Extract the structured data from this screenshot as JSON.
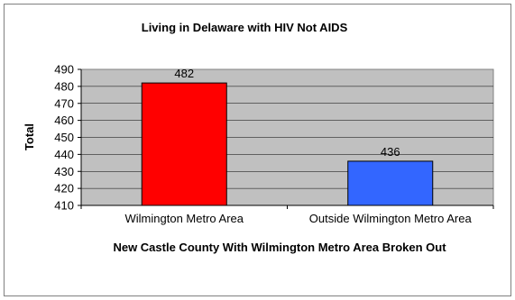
{
  "chart_data": {
    "type": "bar",
    "title": "Living in Delaware with HIV Not AIDS",
    "xlabel": "New Castle County With Wilmington Metro Area Broken Out",
    "ylabel": "Total",
    "categories": [
      "Wilmington Metro Area",
      "Outside Wilmington Metro Area"
    ],
    "values": [
      482,
      436
    ],
    "data_labels": [
      "482",
      "436"
    ],
    "bar_colors": [
      "#ff0000",
      "#3366ff"
    ],
    "ylim": [
      410,
      490
    ],
    "yticks": [
      410,
      420,
      430,
      440,
      450,
      460,
      470,
      480,
      490
    ],
    "grid": true,
    "plot_background": "#c0c0c0"
  }
}
